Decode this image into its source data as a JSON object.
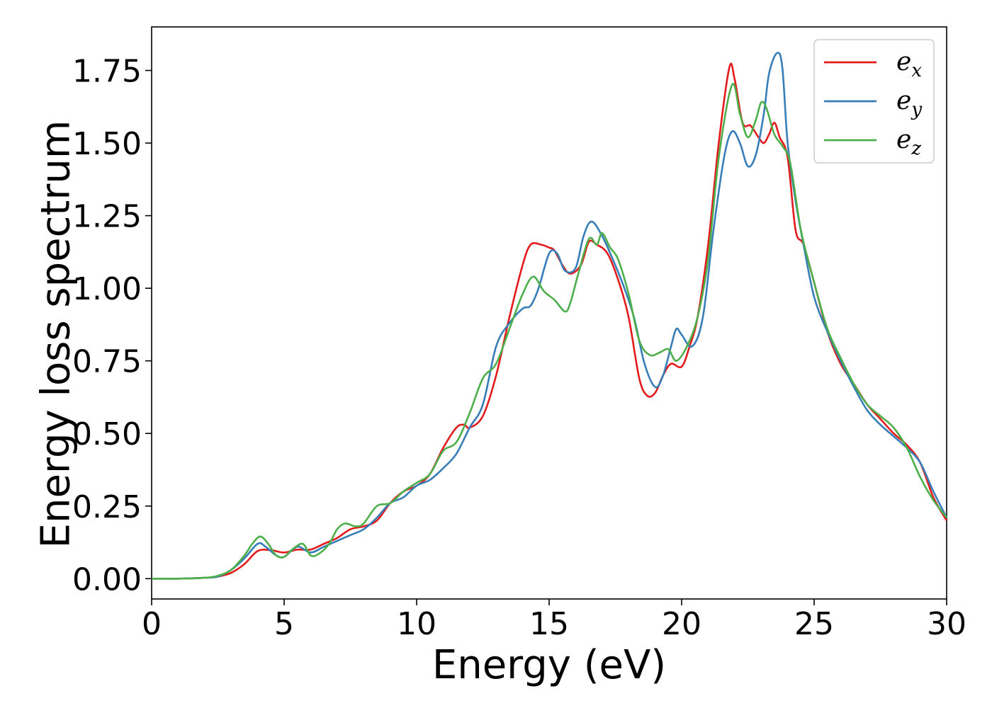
{
  "chart_data": {
    "type": "line",
    "title": "",
    "xlabel": "Energy (eV)",
    "ylabel": "Energy loss spectrum",
    "xlim": [
      0,
      30
    ],
    "ylim": [
      -0.07,
      1.9
    ],
    "xticks": [
      "0",
      "5",
      "10",
      "15",
      "20",
      "25",
      "30"
    ],
    "yticks": [
      "0.00",
      "0.25",
      "0.50",
      "0.75",
      "1.00",
      "1.25",
      "1.50",
      "1.75"
    ],
    "grid": false,
    "legend_position": "top-right",
    "series": [
      {
        "name": "e_x",
        "label_base": "e",
        "label_sub": "x",
        "color": "#e41a1c",
        "x": [
          0,
          1,
          2,
          2.5,
          3,
          3.5,
          4,
          4.5,
          5,
          5.5,
          6,
          6.5,
          7,
          7.5,
          8,
          8.5,
          9,
          9.5,
          10,
          10.5,
          11,
          11.5,
          11.8,
          12,
          12.5,
          13,
          13.5,
          14,
          14.3,
          14.7,
          15,
          15.2,
          15.5,
          15.8,
          16.2,
          16.5,
          16.8,
          17.2,
          17.6,
          18,
          18.4,
          18.7,
          19,
          19.3,
          19.6,
          20,
          20.3,
          20.6,
          21,
          21.4,
          21.8,
          22,
          22.3,
          22.6,
          22.9,
          23.1,
          23.3,
          23.5,
          23.7,
          24,
          24.3,
          24.6,
          25,
          25.5,
          26,
          26.5,
          27,
          27.5,
          28,
          28.5,
          29,
          29.5,
          30
        ],
        "y": [
          0,
          0,
          0.003,
          0.007,
          0.02,
          0.05,
          0.095,
          0.098,
          0.09,
          0.1,
          0.1,
          0.12,
          0.14,
          0.17,
          0.18,
          0.2,
          0.26,
          0.3,
          0.32,
          0.36,
          0.45,
          0.52,
          0.53,
          0.52,
          0.56,
          0.7,
          0.9,
          1.08,
          1.15,
          1.15,
          1.14,
          1.13,
          1.08,
          1.05,
          1.08,
          1.16,
          1.15,
          1.12,
          1.03,
          0.9,
          0.69,
          0.63,
          0.64,
          0.7,
          0.74,
          0.73,
          0.8,
          0.9,
          1.15,
          1.5,
          1.76,
          1.72,
          1.57,
          1.56,
          1.52,
          1.5,
          1.53,
          1.57,
          1.52,
          1.45,
          1.2,
          1.15,
          1.02,
          0.85,
          0.74,
          0.67,
          0.6,
          0.55,
          0.5,
          0.46,
          0.4,
          0.28,
          0.2
        ]
      },
      {
        "name": "e_y",
        "label_base": "e",
        "label_sub": "y",
        "color": "#377eb8",
        "x": [
          0,
          1,
          2,
          2.5,
          3,
          3.5,
          4,
          4.3,
          4.7,
          5,
          5.5,
          6,
          6.5,
          7,
          7.5,
          8,
          8.5,
          9,
          9.5,
          10,
          10.5,
          11,
          11.5,
          12,
          12.5,
          13,
          13.5,
          14,
          14.3,
          14.6,
          15,
          15.3,
          15.6,
          16,
          16.3,
          16.6,
          17,
          17.4,
          17.8,
          18.2,
          18.6,
          19,
          19.3,
          19.6,
          19.8,
          20,
          20.4,
          20.8,
          21.2,
          21.6,
          21.9,
          22.2,
          22.5,
          22.8,
          23.1,
          23.3,
          23.6,
          23.8,
          24,
          24.3,
          24.6,
          25,
          25.5,
          26,
          26.5,
          27,
          27.5,
          28,
          28.5,
          29,
          29.5,
          30
        ],
        "y": [
          0,
          0,
          0.003,
          0.007,
          0.03,
          0.07,
          0.12,
          0.11,
          0.08,
          0.075,
          0.11,
          0.09,
          0.11,
          0.13,
          0.15,
          0.17,
          0.21,
          0.26,
          0.28,
          0.32,
          0.34,
          0.38,
          0.43,
          0.52,
          0.6,
          0.8,
          0.88,
          0.93,
          0.94,
          1.0,
          1.12,
          1.12,
          1.06,
          1.07,
          1.18,
          1.23,
          1.18,
          1.1,
          1.01,
          0.9,
          0.74,
          0.66,
          0.7,
          0.8,
          0.86,
          0.84,
          0.8,
          0.9,
          1.2,
          1.45,
          1.54,
          1.5,
          1.42,
          1.46,
          1.6,
          1.74,
          1.81,
          1.76,
          1.5,
          1.3,
          1.15,
          0.97,
          0.85,
          0.75,
          0.66,
          0.58,
          0.53,
          0.49,
          0.45,
          0.4,
          0.3,
          0.21
        ]
      },
      {
        "name": "e_z",
        "label_base": "e",
        "label_sub": "z",
        "color": "#4daf4a",
        "x": [
          0,
          1,
          2,
          2.5,
          3,
          3.5,
          3.8,
          4.1,
          4.4,
          4.7,
          5,
          5.3,
          5.7,
          6,
          6.3,
          6.7,
          7,
          7.3,
          7.7,
          8,
          8.5,
          9,
          9.5,
          10,
          10.5,
          11,
          11.5,
          12,
          12.5,
          13,
          13.5,
          14,
          14.4,
          14.8,
          15.2,
          15.6,
          15.8,
          16.1,
          16.5,
          16.8,
          17,
          17.3,
          17.6,
          18,
          18.4,
          18.8,
          19.2,
          19.5,
          19.8,
          20.2,
          20.6,
          21,
          21.4,
          21.9,
          22.2,
          22.5,
          22.8,
          23,
          23.2,
          23.5,
          23.8,
          24.1,
          24.5,
          25,
          25.5,
          26,
          26.5,
          27,
          27.5,
          28,
          28.5,
          29,
          29.5,
          30
        ],
        "y": [
          0,
          0,
          0.003,
          0.01,
          0.03,
          0.08,
          0.12,
          0.145,
          0.12,
          0.08,
          0.075,
          0.1,
          0.12,
          0.08,
          0.085,
          0.12,
          0.17,
          0.19,
          0.18,
          0.19,
          0.25,
          0.26,
          0.3,
          0.33,
          0.36,
          0.44,
          0.47,
          0.57,
          0.69,
          0.74,
          0.86,
          0.98,
          1.04,
          0.99,
          0.96,
          0.92,
          0.95,
          1.05,
          1.17,
          1.15,
          1.19,
          1.14,
          1.1,
          0.98,
          0.82,
          0.77,
          0.78,
          0.79,
          0.75,
          0.8,
          0.9,
          1.1,
          1.45,
          1.7,
          1.6,
          1.52,
          1.58,
          1.64,
          1.62,
          1.53,
          1.49,
          1.43,
          1.2,
          1.02,
          0.86,
          0.76,
          0.67,
          0.6,
          0.56,
          0.52,
          0.45,
          0.35,
          0.27,
          0.21
        ]
      }
    ]
  }
}
